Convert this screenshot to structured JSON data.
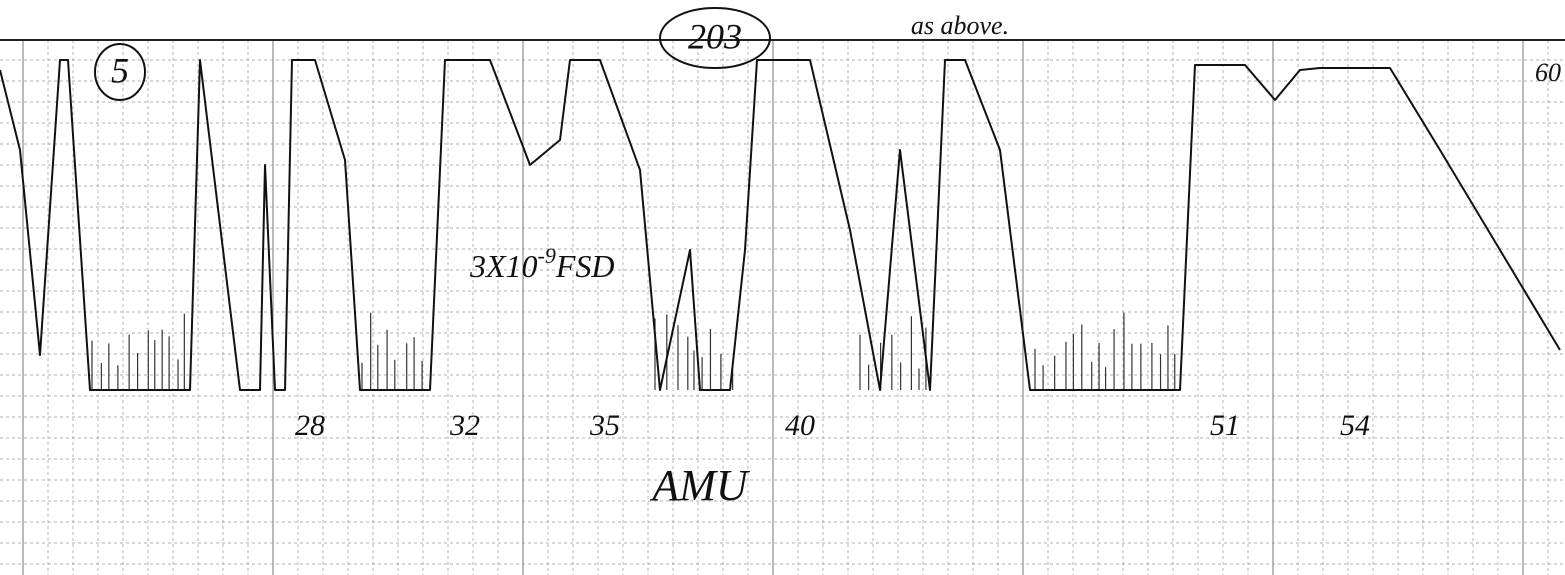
{
  "annotations": {
    "scan_number": "5",
    "run_number": "203",
    "note": "as above.",
    "end_label": "60",
    "sensitivity": {
      "base": "3X10",
      "exponent": "-9",
      "unit": "FSD"
    }
  },
  "axis": {
    "label": "AMU",
    "ticks": [
      "28",
      "32",
      "35",
      "40",
      "51",
      "54"
    ]
  }
}
